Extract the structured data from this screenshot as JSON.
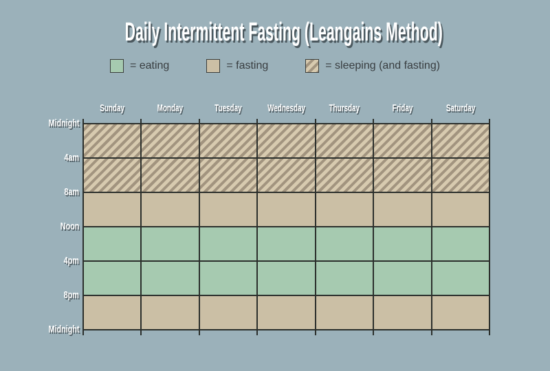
{
  "title": "Daily Intermittent Fasting (Leangains Method)",
  "legend": {
    "items": [
      {
        "key": "eating",
        "label": "= eating"
      },
      {
        "key": "fasting",
        "label": "= fasting"
      },
      {
        "key": "sleeping",
        "label": "= sleeping (and fasting)"
      }
    ]
  },
  "chart_data": {
    "type": "heatmap",
    "title": "Daily Intermittent Fasting (Leangains Method)",
    "x_categories": [
      "Sunday",
      "Monday",
      "Tuesday",
      "Wednesday",
      "Thursday",
      "Friday",
      "Saturday"
    ],
    "y_ticks": [
      "Midnight",
      "4am",
      "8am",
      "Noon",
      "4pm",
      "8pm",
      "Midnight"
    ],
    "row_spans": [
      {
        "from": "Midnight",
        "to": "4am",
        "state": "sleeping"
      },
      {
        "from": "4am",
        "to": "8am",
        "state": "sleeping"
      },
      {
        "from": "8am",
        "to": "Noon",
        "state": "fasting"
      },
      {
        "from": "Noon",
        "to": "4pm",
        "state": "eating"
      },
      {
        "from": "4pm",
        "to": "8pm",
        "state": "eating"
      },
      {
        "from": "8pm",
        "to": "Midnight",
        "state": "fasting"
      }
    ],
    "legend_entries": [
      "= eating",
      "= fasting",
      "= sleeping (and fasting)"
    ],
    "grid": true,
    "legend_position": "top"
  },
  "colors": {
    "background": "#9bb1ba",
    "eating": "#a6cab0",
    "fasting": "#cbbfa5",
    "sleeping_light": "#d7caaf",
    "sleeping_dark": "#a2947f",
    "grid_line": "#2b2f2c",
    "label_text": "#ffffff",
    "label_shadow": "rgba(52,63,68,0.78)",
    "legend_text": "#383d40"
  }
}
